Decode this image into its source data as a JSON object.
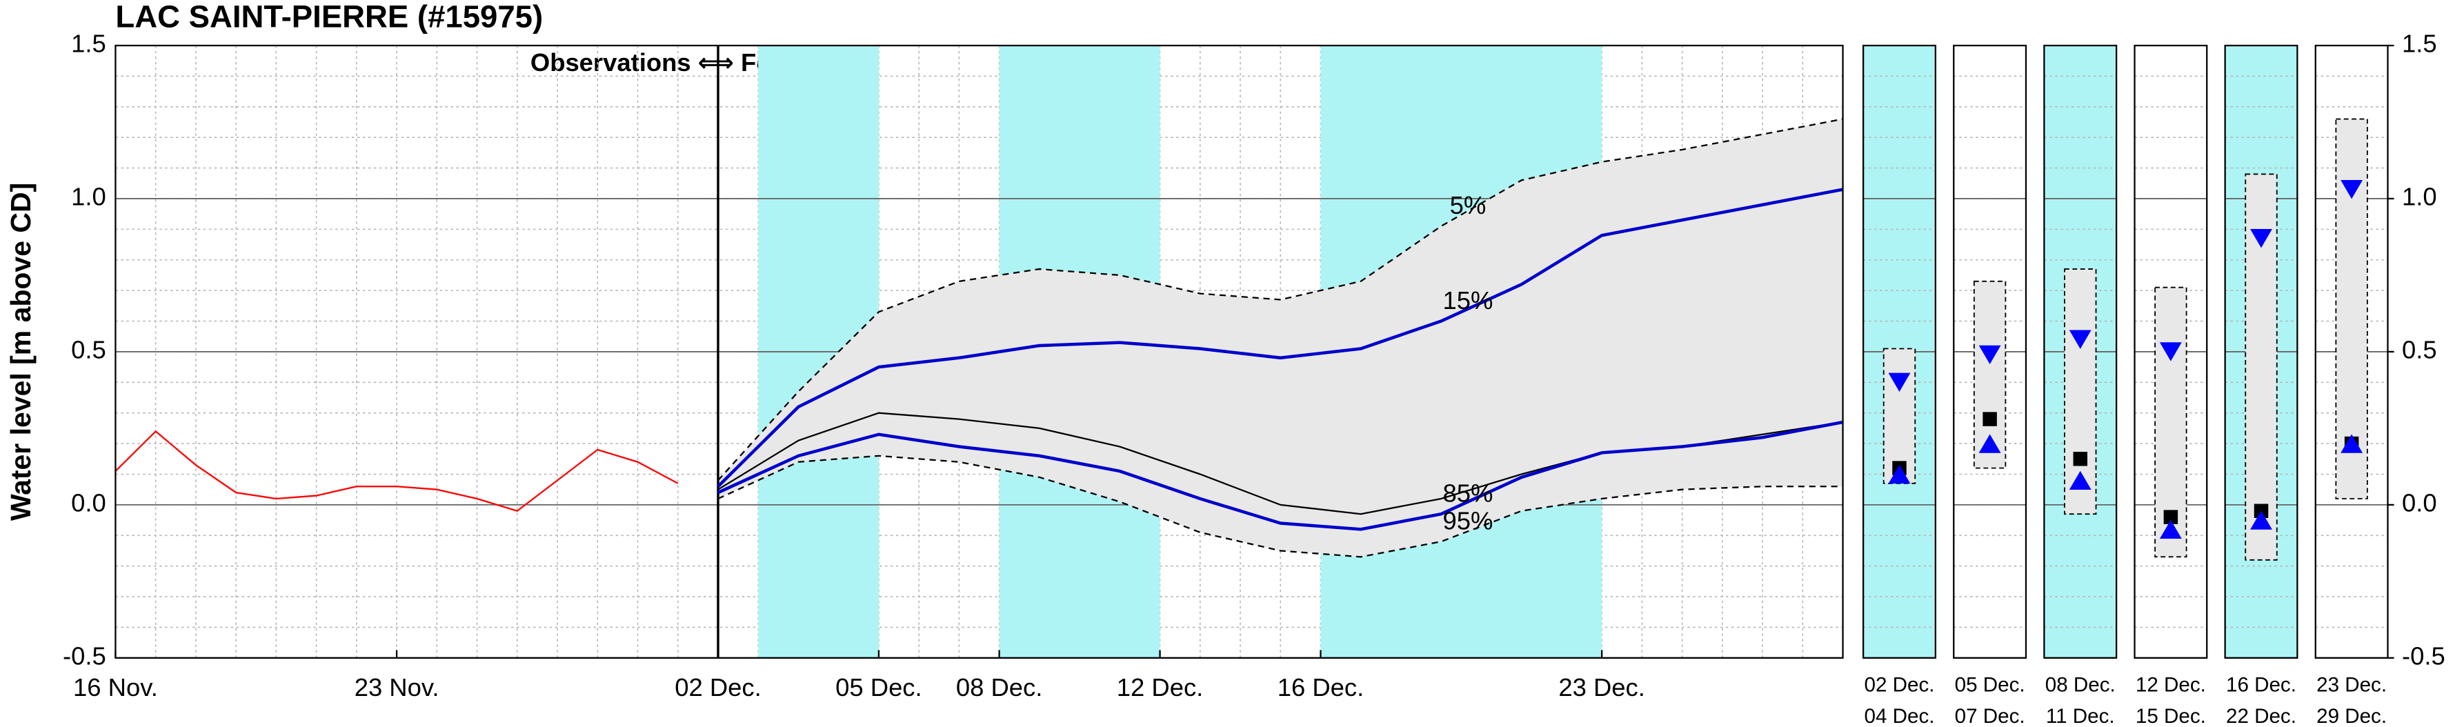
{
  "chart_data": [
    {
      "type": "line",
      "title": "LAC SAINT-PIERRE (#15975)",
      "ylabel": "Water level [m above CD]",
      "annotation": "Observations ⟺ Forecasts",
      "xlim": [
        0,
        43
      ],
      "xticks": [
        {
          "value": 0,
          "label": "16 Nov."
        },
        {
          "value": 7,
          "label": "23 Nov."
        },
        {
          "value": 15,
          "label": "02 Dec."
        },
        {
          "value": 19,
          "label": "05 Dec."
        },
        {
          "value": 22,
          "label": "08 Dec."
        },
        {
          "value": 26,
          "label": "12 Dec."
        },
        {
          "value": 30,
          "label": "16 Dec."
        },
        {
          "value": 37,
          "label": "23 Dec."
        }
      ],
      "ylim": [
        -0.5,
        1.5
      ],
      "yticks": [
        -0.5,
        {
          "value": 0,
          "label": "0.0"
        },
        0.5,
        {
          "value": 1,
          "label": "1.0"
        },
        1.5
      ],
      "grid": true,
      "forecast_start": 15,
      "highlight_bands": [
        [
          16,
          19
        ],
        [
          22,
          26
        ],
        [
          30,
          37
        ]
      ],
      "band_color": "#aff4f4",
      "shade": {
        "between": [
          1,
          5
        ],
        "color": "#e8e8e8"
      },
      "series": [
        {
          "color": "#ff0000",
          "x": [
            0,
            1,
            2,
            3,
            4,
            5,
            6,
            7,
            8,
            9,
            10,
            11,
            12,
            13,
            14
          ],
          "values": [
            0.11,
            0.24,
            0.13,
            0.04,
            0.02,
            0.03,
            0.06,
            0.06,
            0.05,
            0.02,
            -0.02,
            0.08,
            0.18,
            0.14,
            0.07
          ]
        },
        {
          "name": "5%",
          "color": "#000000",
          "style": "dashed",
          "x": [
            15,
            17,
            19,
            21,
            23,
            25,
            27,
            29,
            31,
            33,
            35,
            37,
            39,
            41,
            43
          ],
          "values": [
            0.08,
            0.37,
            0.63,
            0.73,
            0.77,
            0.75,
            0.69,
            0.67,
            0.73,
            0.91,
            1.06,
            1.12,
            1.16,
            1.21,
            1.26
          ]
        },
        {
          "name": "15%",
          "color": "#0000cc",
          "style": "thick",
          "x": [
            15,
            17,
            19,
            21,
            23,
            25,
            27,
            29,
            31,
            33,
            35,
            37,
            39,
            41,
            43
          ],
          "values": [
            0.06,
            0.32,
            0.45,
            0.48,
            0.52,
            0.53,
            0.51,
            0.48,
            0.51,
            0.6,
            0.72,
            0.88,
            0.93,
            0.98,
            1.03
          ]
        },
        {
          "color": "#000000",
          "x": [
            15,
            17,
            19,
            21,
            23,
            25,
            27,
            29,
            31,
            33,
            35,
            37,
            39,
            41,
            43
          ],
          "values": [
            0.05,
            0.21,
            0.3,
            0.28,
            0.25,
            0.19,
            0.1,
            0,
            -0.03,
            0.02,
            0.1,
            0.17,
            0.19,
            0.23,
            0.27
          ]
        },
        {
          "name": "85%",
          "color": "#0000cc",
          "style": "thick",
          "x": [
            15,
            17,
            19,
            21,
            23,
            25,
            27,
            29,
            31,
            33,
            35,
            37,
            39,
            41,
            43
          ],
          "values": [
            0.04,
            0.16,
            0.23,
            0.19,
            0.16,
            0.11,
            0.02,
            -0.06,
            -0.08,
            -0.03,
            0.09,
            0.17,
            0.19,
            0.22,
            0.27
          ]
        },
        {
          "name": "95%",
          "color": "#000000",
          "style": "dashed",
          "x": [
            15,
            17,
            19,
            21,
            23,
            25,
            27,
            29,
            31,
            33,
            35,
            37,
            39,
            41,
            43
          ],
          "values": [
            0.02,
            0.14,
            0.16,
            0.14,
            0.09,
            0.01,
            -0.09,
            -0.15,
            -0.17,
            -0.12,
            -0.02,
            0.02,
            0.05,
            0.06,
            0.06
          ]
        }
      ]
    },
    {
      "type": "range",
      "categories": [
        [
          "02 Dec.",
          "04 Dec."
        ],
        [
          "05 Dec.",
          "07 Dec."
        ],
        [
          "08 Dec.",
          "11 Dec."
        ],
        [
          "12 Dec.",
          "15 Dec."
        ],
        [
          "16 Dec.",
          "22 Dec."
        ],
        [
          "23 Dec.",
          "29 Dec."
        ]
      ],
      "panel_colors": [
        "#aff4f4",
        "#ffffff",
        "#aff4f4",
        "#ffffff",
        "#aff4f4",
        "#ffffff"
      ],
      "box_color": "#e8e8e8",
      "high": [
        0.51,
        0.73,
        0.77,
        0.71,
        1.08,
        1.26
      ],
      "low": [
        0.07,
        0.12,
        -0.03,
        -0.17,
        -0.18,
        0.02
      ],
      "markers": [
        {
          "shape": "triangle-down",
          "color": "#0000ff",
          "values": [
            0.4,
            0.49,
            0.54,
            0.5,
            0.87,
            1.03
          ]
        },
        {
          "shape": "square",
          "color": "#000000",
          "values": [
            0.12,
            0.28,
            0.15,
            -0.04,
            -0.02,
            0.2
          ]
        },
        {
          "shape": "triangle-up",
          "color": "#0000ff",
          "values": [
            0.1,
            0.2,
            0.08,
            -0.08,
            -0.05,
            0.2
          ]
        }
      ],
      "ylim": [
        -0.5,
        1.5
      ],
      "yticks": [
        -0.5,
        {
          "value": 0,
          "label": "0.0"
        },
        0.5,
        {
          "value": 1,
          "label": "1.0"
        },
        1.5
      ],
      "grid": true
    }
  ]
}
